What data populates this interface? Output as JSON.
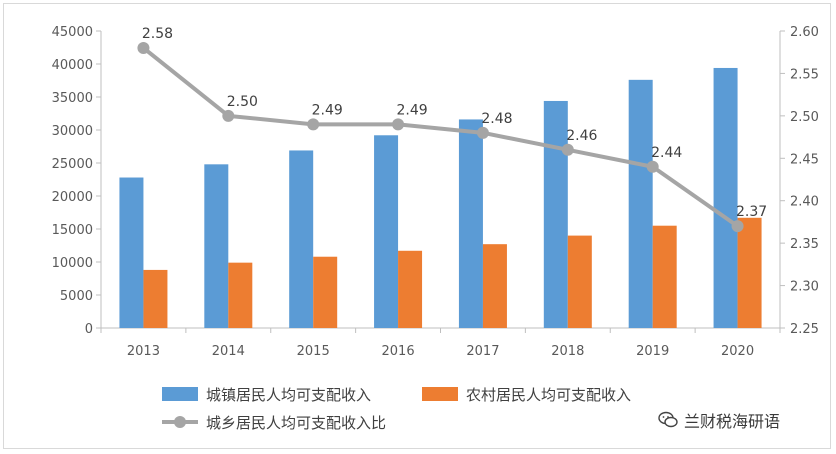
{
  "chart_data": {
    "type": "bar",
    "categories": [
      "2013",
      "2014",
      "2015",
      "2016",
      "2017",
      "2018",
      "2019",
      "2020"
    ],
    "series": [
      {
        "name": "城镇居民人均可支配收入",
        "type": "bar",
        "axis": "left",
        "color": "#5b9bd5",
        "values": [
          22800,
          24800,
          26900,
          29200,
          31600,
          34400,
          37600,
          39400
        ]
      },
      {
        "name": "农村居民人均可支配收入",
        "type": "bar",
        "axis": "left",
        "color": "#ed7d31",
        "values": [
          8800,
          9900,
          10800,
          11700,
          12700,
          14000,
          15500,
          16700
        ]
      },
      {
        "name": "城乡居民人均可支配收入比",
        "type": "line",
        "axis": "right",
        "color": "#a5a5a5",
        "values": [
          2.58,
          2.5,
          2.49,
          2.49,
          2.48,
          2.46,
          2.44,
          2.37
        ],
        "data_labels": [
          "2.58",
          "2.50",
          "2.49",
          "2.49",
          "2.48",
          "2.46",
          "2.44",
          "2.37"
        ]
      }
    ],
    "y_left": {
      "min": 0,
      "max": 45000,
      "step": 5000,
      "ticks": [
        "0",
        "5000",
        "10000",
        "15000",
        "20000",
        "25000",
        "30000",
        "35000",
        "40000",
        "45000"
      ]
    },
    "y_right": {
      "min": 2.25,
      "max": 2.6,
      "step": 0.05,
      "ticks": [
        "2.25",
        "2.30",
        "2.35",
        "2.40",
        "2.45",
        "2.50",
        "2.55",
        "2.60"
      ]
    },
    "grid": false,
    "legend_position": "bottom"
  },
  "watermark": {
    "text": "兰财税海研语",
    "icon": "wechat-icon"
  }
}
